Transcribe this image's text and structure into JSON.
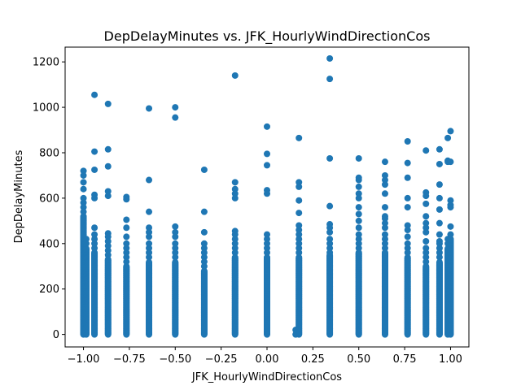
{
  "chart_data": {
    "type": "scatter",
    "title": "DepDelayMinutes vs. JFK_HourlyWindDirectionCos",
    "xlabel": "JFK_HourlyWindDirectionCos",
    "ylabel": "DepDelayMinutes",
    "xlim": [
      -1.1,
      1.1
    ],
    "ylim": [
      -55,
      1265
    ],
    "x_ticks": [
      -1.0,
      -0.75,
      -0.5,
      -0.25,
      0.0,
      0.25,
      0.5,
      0.75,
      1.0
    ],
    "x_tick_labels": [
      "−1.00",
      "−0.75",
      "−0.50",
      "−0.25",
      "0.00",
      "0.25",
      "0.50",
      "0.75",
      "1.00"
    ],
    "y_ticks": [
      0,
      200,
      400,
      600,
      800,
      1000,
      1200
    ],
    "y_tick_labels": [
      "0",
      "200",
      "400",
      "600",
      "800",
      "1000",
      "1200"
    ],
    "grid": false,
    "legend": "none",
    "color": "#1f77b4",
    "columns": [
      {
        "x": -1.0,
        "max": 720,
        "dense_to": 520,
        "outliers": [
          720,
          700,
          670,
          640,
          600,
          580,
          560,
          540,
          520,
          500,
          480,
          460,
          440
        ]
      },
      {
        "x": -0.985,
        "max": 420,
        "dense_to": 380,
        "outliers": [
          420,
          400
        ]
      },
      {
        "x": -0.94,
        "max": 1055,
        "dense_to": 360,
        "outliers": [
          1055,
          805,
          725,
          615,
          600,
          470,
          440,
          420,
          400,
          380
        ]
      },
      {
        "x": -0.866,
        "max": 1015,
        "dense_to": 330,
        "outliers": [
          1015,
          815,
          740,
          630,
          610,
          445,
          430,
          410,
          390,
          370,
          350
        ]
      },
      {
        "x": -0.766,
        "max": 605,
        "dense_to": 300,
        "outliers": [
          605,
          595,
          505,
          470,
          430,
          400,
          380,
          360,
          340,
          320
        ]
      },
      {
        "x": -0.643,
        "max": 995,
        "dense_to": 320,
        "outliers": [
          995,
          680,
          540,
          470,
          450,
          430,
          400,
          380,
          360,
          340
        ]
      },
      {
        "x": -0.5,
        "max": 1000,
        "dense_to": 320,
        "outliers": [
          1000,
          955,
          475,
          450,
          430,
          400,
          380,
          360,
          340
        ]
      },
      {
        "x": -0.342,
        "max": 725,
        "dense_to": 280,
        "outliers": [
          725,
          540,
          450,
          400,
          380,
          360,
          340,
          320,
          300
        ]
      },
      {
        "x": -0.174,
        "max": 1140,
        "dense_to": 340,
        "outliers": [
          1140,
          670,
          640,
          620,
          600,
          455,
          440,
          420,
          400,
          380,
          360
        ]
      },
      {
        "x": 0.0,
        "max": 915,
        "dense_to": 340,
        "outliers": [
          915,
          795,
          745,
          635,
          620,
          440,
          420,
          400,
          380,
          360
        ]
      },
      {
        "x": 0.156,
        "max": 20,
        "dense_to": 0,
        "outliers": [
          20
        ]
      },
      {
        "x": 0.174,
        "max": 865,
        "dense_to": 340,
        "outliers": [
          865,
          670,
          650,
          590,
          535,
          480,
          460,
          440,
          420,
          400,
          380,
          360
        ]
      },
      {
        "x": 0.342,
        "max": 1215,
        "dense_to": 350,
        "outliers": [
          1215,
          1125,
          775,
          565,
          485,
          470,
          450,
          420,
          400,
          380,
          360
        ]
      },
      {
        "x": 0.5,
        "max": 775,
        "dense_to": 360,
        "outliers": [
          775,
          690,
          680,
          650,
          620,
          600,
          560,
          530,
          500,
          470,
          440,
          420,
          400,
          380
        ]
      },
      {
        "x": 0.643,
        "max": 760,
        "dense_to": 360,
        "outliers": [
          760,
          700,
          680,
          660,
          620,
          560,
          520,
          510,
          490,
          470,
          440,
          420,
          400,
          380
        ]
      },
      {
        "x": 0.766,
        "max": 850,
        "dense_to": 340,
        "outliers": [
          850,
          755,
          690,
          600,
          560,
          480,
          460,
          430,
          400,
          380,
          360
        ]
      },
      {
        "x": 0.866,
        "max": 810,
        "dense_to": 300,
        "outliers": [
          810,
          625,
          610,
          575,
          520,
          490,
          470,
          450,
          410,
          380,
          360,
          340,
          320
        ]
      },
      {
        "x": 0.94,
        "max": 815,
        "dense_to": 320,
        "outliers": [
          815,
          750,
          660,
          600,
          550,
          490,
          440,
          410,
          400,
          380,
          360,
          340
        ]
      },
      {
        "x": 0.985,
        "max": 865,
        "dense_to": 380,
        "outliers": [
          865,
          765,
          760,
          420,
          400
        ]
      },
      {
        "x": 1.0,
        "max": 895,
        "dense_to": 420,
        "outliers": [
          895,
          760,
          590,
          570,
          560,
          475,
          440,
          420
        ]
      }
    ]
  }
}
